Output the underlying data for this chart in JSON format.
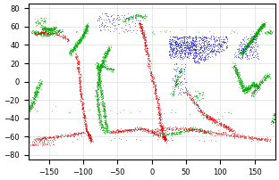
{
  "xlim": [
    -180,
    180
  ],
  "ylim": [
    -85,
    85
  ],
  "xticks": [
    -150,
    -100,
    -50,
    0,
    50,
    100,
    150
  ],
  "yticks": [
    -80,
    -60,
    -40,
    -20,
    0,
    20,
    40,
    60,
    80
  ],
  "xlabel_fontsize": 6,
  "ylabel_fontsize": 6,
  "tick_labelsize": 6,
  "background_color": "#ffffff",
  "grid_color": "#cccccc",
  "grid_alpha": 0.5,
  "green_color": "#00aa00",
  "red_color": "#dd0000",
  "blue_color": "#0000cc",
  "dot_size": 0.3,
  "dot_alpha": 0.7,
  "coast_color": "#888888",
  "coast_lw": 0.4,
  "seed": 42
}
